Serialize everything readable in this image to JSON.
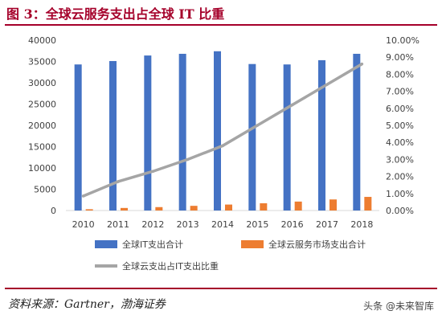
{
  "figure": {
    "title": "图 3：全球云服务支出占全球 IT 比重",
    "source": "资料来源：Gartner，渤海证券",
    "watermark": "头条 @未来智库"
  },
  "colors": {
    "title": "#a5002a",
    "bar_it": "#4472C4",
    "bar_cloud": "#ED7D31",
    "line_share": "#A5A5A5"
  },
  "chart_data": {
    "type": "bar",
    "categories": [
      "2010",
      "2011",
      "2012",
      "2013",
      "2014",
      "2015",
      "2016",
      "2017",
      "2018"
    ],
    "series": [
      {
        "name": "全球IT支出合计",
        "kind": "bar",
        "axis": "left",
        "values": [
          34300,
          35100,
          36400,
          36800,
          37400,
          34400,
          34300,
          35300,
          36800
        ]
      },
      {
        "name": "全球云服务市场支出合计",
        "kind": "bar",
        "axis": "left",
        "values": [
          300,
          600,
          800,
          1100,
          1400,
          1700,
          2100,
          2600,
          3200
        ]
      },
      {
        "name": "全球云支出占IT支出比重",
        "kind": "line",
        "axis": "right",
        "values": [
          0.85,
          1.7,
          2.3,
          3.0,
          3.8,
          5.0,
          6.2,
          7.4,
          8.6
        ]
      }
    ],
    "ylim_left": [
      0,
      40000
    ],
    "yticks_left": [
      "0",
      "5000",
      "10000",
      "15000",
      "20000",
      "25000",
      "30000",
      "35000",
      "40000"
    ],
    "ylim_right": [
      0,
      10
    ],
    "yticks_right": [
      "0.00%",
      "1.00%",
      "2.00%",
      "3.00%",
      "4.00%",
      "5.00%",
      "6.00%",
      "7.00%",
      "8.00%",
      "9.00%",
      "10.00%"
    ],
    "grid": false,
    "legend_position": "bottom"
  }
}
